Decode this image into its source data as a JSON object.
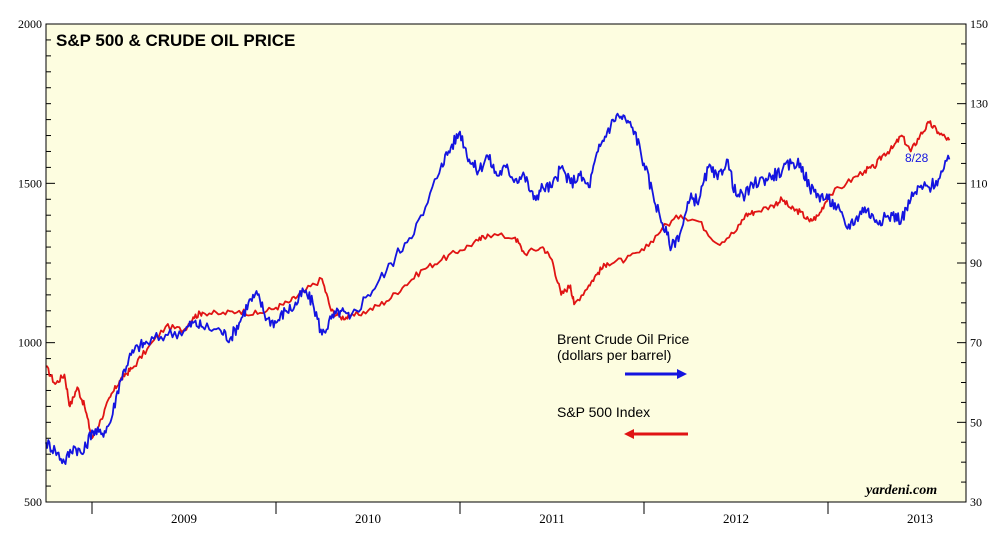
{
  "chart_data": {
    "type": "line",
    "title": "S&P 500 & CRUDE OIL PRICE",
    "credit": "yardeni.com",
    "annotation": "8/28",
    "x_range": [
      2008.75,
      2013.75
    ],
    "x_year_labels": [
      "2009",
      "2010",
      "2011",
      "2012",
      "2013"
    ],
    "y_left": {
      "min": 500,
      "max": 2000,
      "ticks": [
        500,
        1000,
        1500,
        2000
      ]
    },
    "y_right": {
      "min": 30,
      "max": 150,
      "ticks": [
        30,
        50,
        70,
        90,
        110,
        130,
        150
      ]
    },
    "legend": {
      "brent_line1": "Brent Crude Oil Price",
      "brent_line2": "(dollars per barrel)",
      "sp500": "S&P 500 Index"
    },
    "colors": {
      "background": "#fdfde0",
      "brent": "#1414e0",
      "sp500": "#e01414",
      "axis": "#000000"
    },
    "series": [
      {
        "name": "S&P 500 Index",
        "axis": "left",
        "color": "#e01414",
        "x": [
          2008.75,
          2008.8,
          2008.85,
          2008.88,
          2008.92,
          2008.96,
          2009.0,
          2009.05,
          2009.1,
          2009.15,
          2009.18,
          2009.22,
          2009.3,
          2009.4,
          2009.5,
          2009.55,
          2009.6,
          2009.7,
          2009.8,
          2009.9,
          2010.0,
          2010.08,
          2010.15,
          2010.25,
          2010.3,
          2010.35,
          2010.4,
          2010.5,
          2010.6,
          2010.7,
          2010.8,
          2010.9,
          2011.0,
          2011.1,
          2011.15,
          2011.3,
          2011.35,
          2011.45,
          2011.5,
          2011.55,
          2011.6,
          2011.62,
          2011.7,
          2011.75,
          2011.8,
          2011.9,
          2012.0,
          2012.1,
          2012.2,
          2012.3,
          2012.4,
          2012.5,
          2012.55,
          2012.6,
          2012.7,
          2012.75,
          2012.8,
          2012.85,
          2012.9,
          2012.95,
          2013.0,
          2013.1,
          2013.2,
          2013.25,
          2013.3,
          2013.35,
          2013.4,
          2013.45,
          2013.5,
          2013.55,
          2013.6,
          2013.66
        ],
        "values": [
          925,
          870,
          900,
          800,
          860,
          800,
          700,
          760,
          830,
          880,
          900,
          920,
          980,
          1050,
          1040,
          1080,
          1095,
          1090,
          1100,
          1090,
          1110,
          1130,
          1160,
          1200,
          1100,
          1080,
          1080,
          1100,
          1130,
          1180,
          1230,
          1260,
          1290,
          1320,
          1340,
          1330,
          1280,
          1300,
          1260,
          1150,
          1180,
          1120,
          1180,
          1220,
          1250,
          1260,
          1290,
          1360,
          1400,
          1380,
          1310,
          1350,
          1400,
          1410,
          1430,
          1450,
          1420,
          1410,
          1380,
          1400,
          1460,
          1500,
          1540,
          1550,
          1590,
          1610,
          1650,
          1600,
          1650,
          1690,
          1660,
          1635
        ]
      },
      {
        "name": "Brent Crude Oil Price",
        "axis": "right",
        "color": "#1414e0",
        "x": [
          2008.75,
          2008.8,
          2008.85,
          2008.9,
          2008.95,
          2009.0,
          2009.05,
          2009.1,
          2009.15,
          2009.2,
          2009.25,
          2009.3,
          2009.4,
          2009.5,
          2009.55,
          2009.6,
          2009.7,
          2009.75,
          2009.8,
          2009.85,
          2009.9,
          2009.95,
          2010.0,
          2010.05,
          2010.1,
          2010.15,
          2010.2,
          2010.25,
          2010.3,
          2010.35,
          2010.4,
          2010.5,
          2010.6,
          2010.7,
          2010.8,
          2010.9,
          2010.95,
          2011.0,
          2011.05,
          2011.1,
          2011.15,
          2011.2,
          2011.25,
          2011.3,
          2011.35,
          2011.4,
          2011.45,
          2011.5,
          2011.55,
          2011.6,
          2011.65,
          2011.7,
          2011.75,
          2011.8,
          2011.85,
          2011.9,
          2011.95,
          2012.0,
          2012.05,
          2012.1,
          2012.15,
          2012.2,
          2012.25,
          2012.3,
          2012.35,
          2012.4,
          2012.45,
          2012.5,
          2012.55,
          2012.6,
          2012.65,
          2012.7,
          2012.75,
          2012.8,
          2012.85,
          2012.9,
          2012.95,
          2013.0,
          2013.05,
          2013.1,
          2013.15,
          2013.2,
          2013.25,
          2013.3,
          2013.35,
          2013.4,
          2013.45,
          2013.5,
          2013.55,
          2013.6,
          2013.66
        ],
        "values": [
          45,
          43,
          40,
          44,
          42,
          48,
          47,
          50,
          60,
          66,
          69,
          70,
          72,
          73,
          75,
          74,
          73,
          71,
          75,
          80,
          82,
          76,
          75,
          78,
          79,
          83,
          80,
          72,
          76,
          78,
          76,
          82,
          88,
          95,
          102,
          115,
          119,
          123,
          116,
          113,
          117,
          112,
          114,
          111,
          112,
          106,
          109,
          109,
          114,
          110,
          112,
          109,
          118,
          123,
          127,
          126,
          123,
          115,
          107,
          100,
          94,
          98,
          106,
          106,
          114,
          111,
          116,
          107,
          107,
          110,
          111,
          112,
          113,
          115,
          115,
          109,
          107,
          106,
          104,
          99,
          101,
          104,
          101,
          101,
          102,
          101,
          106,
          109,
          109,
          111,
          116
        ]
      }
    ]
  }
}
